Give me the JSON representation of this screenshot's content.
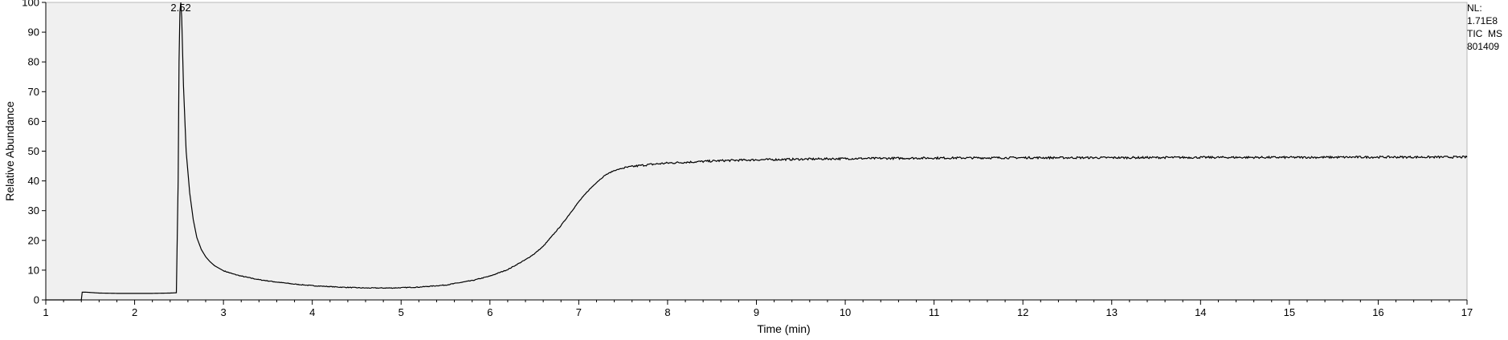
{
  "chart_data": {
    "type": "line",
    "xlabel": "Time (min)",
    "ylabel": "Relative Abundance",
    "xlim": [
      1,
      17
    ],
    "ylim": [
      0,
      100
    ],
    "x_ticks": [
      "1",
      "2",
      "3",
      "4",
      "5",
      "6",
      "7",
      "8",
      "9",
      "10",
      "11",
      "12",
      "13",
      "14",
      "15",
      "16",
      "17"
    ],
    "y_ticks": [
      "0",
      "10",
      "20",
      "30",
      "40",
      "50",
      "60",
      "70",
      "80",
      "90",
      "100"
    ],
    "grid": false,
    "plot_background": "#f0f0f0",
    "line_color": "#000000",
    "peak_label": {
      "text": "2.52",
      "x": 2.52,
      "y": 100
    },
    "info": {
      "nl_label": "NL:",
      "nl_value": "1.71E8",
      "tic": "TIC",
      "ms": "MS",
      "file": "801409"
    },
    "series": [
      {
        "x": [
          1.0,
          1.4,
          1.41,
          1.45,
          1.6,
          1.8,
          2.0,
          2.2,
          2.4,
          2.47,
          2.49,
          2.5,
          2.51,
          2.52,
          2.53,
          2.55,
          2.58,
          2.62,
          2.66,
          2.7,
          2.75,
          2.8,
          2.85,
          2.9,
          3.0,
          3.1,
          3.2,
          3.4,
          3.6,
          3.8,
          4.0,
          4.3,
          4.6,
          4.9,
          5.2,
          5.5,
          5.8,
          6.0,
          6.2,
          6.4,
          6.5,
          6.6,
          6.7,
          6.8,
          6.9,
          7.0,
          7.1,
          7.2,
          7.3,
          7.4,
          7.5,
          7.6,
          7.7,
          7.8,
          8.0,
          8.3,
          8.6,
          9.0,
          9.5,
          10.0,
          11.0,
          12.0,
          13.0,
          14.0,
          15.0,
          16.0,
          17.0
        ],
        "y": [
          0.0,
          0.0,
          2.6,
          2.6,
          2.3,
          2.2,
          2.2,
          2.2,
          2.3,
          2.4,
          40,
          80,
          97,
          100,
          95,
          72,
          50,
          36,
          27,
          21,
          17,
          14.5,
          12.8,
          11.5,
          9.8,
          8.8,
          8.0,
          6.8,
          6.0,
          5.3,
          4.8,
          4.3,
          4.0,
          4.0,
          4.3,
          5.0,
          6.5,
          8.0,
          10.2,
          13.5,
          15.5,
          18.0,
          21.5,
          25.0,
          29.0,
          33.0,
          36.5,
          39.5,
          42.0,
          43.5,
          44.3,
          44.8,
          45.2,
          45.5,
          46.0,
          46.4,
          46.8,
          47.1,
          47.3,
          47.5,
          47.7,
          47.8,
          47.8,
          47.9,
          47.9,
          48.0,
          48.0
        ]
      }
    ]
  }
}
